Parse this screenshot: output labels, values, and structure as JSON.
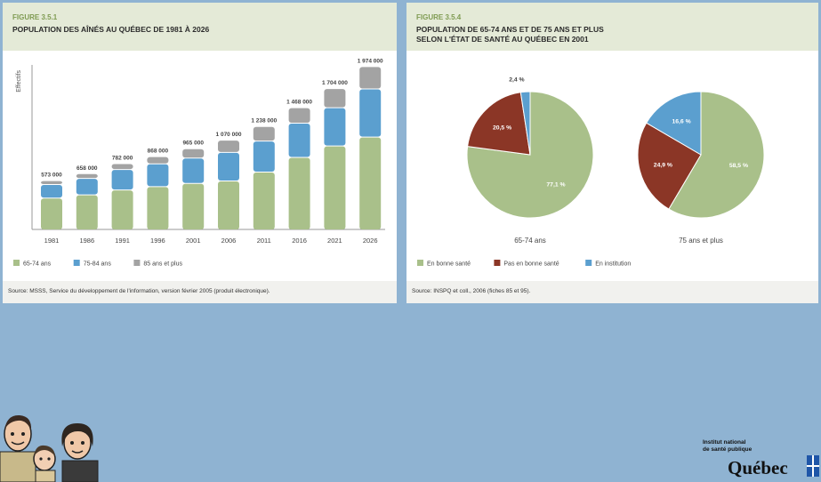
{
  "left": {
    "figure_label": "FIGURE 3.5.1",
    "title": "POPULATION DES AÎNÉS AU QUÉBEC DE 1981 À 2026",
    "source": "Source: MSSS, Service du développement de l'information, version février 2005 (produit électronique)."
  },
  "right": {
    "figure_label": "FIGURE 3.5.4",
    "title_line1": "POPULATION DE 65-74 ANS ET DE 75 ANS ET PLUS",
    "title_line2": "SELON L'ÉTAT DE SANTÉ AU QUÉBEC EN 2001",
    "source": "Source: INSPQ et coll., 2006 (fiches 85 et 95)."
  },
  "colors": {
    "green": "#a9c08a",
    "blue": "#5b9fcf",
    "gray": "#a3a3a3",
    "red": "#8b3626"
  },
  "chart_data": [
    {
      "type": "bar",
      "stacked": true,
      "ylabel": "Effectifs",
      "categories": [
        "1981",
        "1986",
        "1991",
        "1996",
        "2001",
        "2006",
        "2011",
        "2016",
        "2021",
        "2026"
      ],
      "totals_labels": [
        "573 000",
        "658 000",
        "782 000",
        "868 000",
        "965 000",
        "1 070 000",
        "1 238 000",
        "1 468 000",
        "1 704 000",
        "1 974 000"
      ],
      "totals": [
        573000,
        658000,
        782000,
        868000,
        965000,
        1070000,
        1238000,
        1468000,
        1704000,
        1974000
      ],
      "series": [
        {
          "name": "65-74 ans",
          "color": "#a9c08a",
          "values": [
            380000,
            420000,
            480000,
            520000,
            560000,
            590000,
            700000,
            880000,
            1020000,
            1130000
          ]
        },
        {
          "name": "75-84 ans",
          "color": "#5b9fcf",
          "values": [
            155000,
            190000,
            240000,
            270000,
            300000,
            340000,
            370000,
            410000,
            460000,
            580000
          ]
        },
        {
          "name": "85 ans et plus",
          "color": "#a3a3a3",
          "values": [
            38000,
            48000,
            62000,
            78000,
            105000,
            140000,
            168000,
            178000,
            224000,
            264000
          ]
        }
      ],
      "ylim": [
        0,
        2000000
      ],
      "legend": "bottom"
    },
    {
      "type": "pie",
      "groups": [
        {
          "label": "65-74 ans",
          "slices": [
            {
              "name": "En bonne santé",
              "value": 77.1,
              "label": "77,1 %",
              "color": "#a9c08a"
            },
            {
              "name": "Pas en bonne santé",
              "value": 20.5,
              "label": "20,5 %",
              "color": "#8b3626"
            },
            {
              "name": "En institution",
              "value": 2.4,
              "label": "2,4 %",
              "color": "#5b9fcf"
            }
          ]
        },
        {
          "label": "75 ans et plus",
          "slices": [
            {
              "name": "En bonne santé",
              "value": 58.5,
              "label": "58,5 %",
              "color": "#a9c08a"
            },
            {
              "name": "Pas en bonne santé",
              "value": 24.9,
              "label": "24,9 %",
              "color": "#8b3626"
            },
            {
              "name": "En institution",
              "value": 16.6,
              "label": "16,6 %",
              "color": "#5b9fcf"
            }
          ]
        }
      ],
      "legend": [
        "En bonne santé",
        "Pas en bonne santé",
        "En institution"
      ]
    }
  ],
  "footer": {
    "logo_text_line1": "Institut national",
    "logo_text_line2": "de santé publique",
    "logo_word": "Québec"
  }
}
